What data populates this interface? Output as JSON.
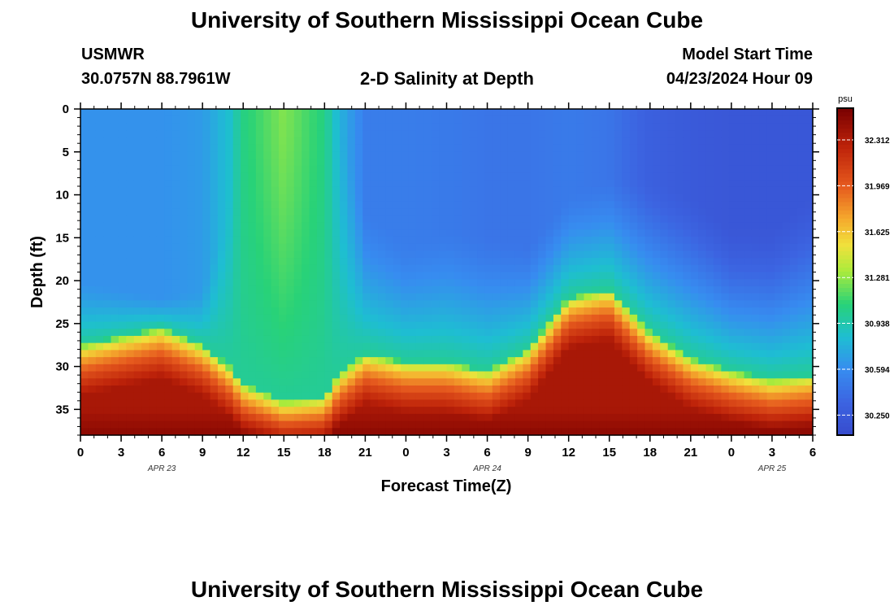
{
  "page": {
    "title_top": "University of Southern Mississippi Ocean Cube",
    "title_bottom": "University of Southern Mississippi Ocean Cube",
    "station": "USMWR",
    "coords": "30.0757N  88.7961W",
    "plot_title": "2-D Salinity at Depth",
    "model_start_label": "Model Start Time",
    "model_start_value": "04/23/2024 Hour 09"
  },
  "chart_data": {
    "type": "heatmap",
    "title": "2-D Salinity at Depth",
    "xlabel": "Forecast Time(Z)",
    "ylabel": "Depth (ft)",
    "x_ticks": [
      "0",
      "3",
      "6",
      "9",
      "12",
      "15",
      "18",
      "21",
      "0",
      "3",
      "6",
      "9",
      "12",
      "15",
      "18",
      "21",
      "0",
      "3",
      "6"
    ],
    "date_labels": [
      {
        "label": "APR 23",
        "hour_index": 6
      },
      {
        "label": "APR 24",
        "hour_index": 30
      },
      {
        "label": "APR 25",
        "hour_index": 51
      }
    ],
    "xlim": [
      0,
      54
    ],
    "y_ticks": [
      0,
      5,
      10,
      15,
      20,
      25,
      30,
      35
    ],
    "ylim": [
      0,
      38
    ],
    "colorbar": {
      "unit": "psu",
      "ticks": [
        "32.312",
        "31.969",
        "31.625",
        "31.281",
        "30.938",
        "30.594",
        "30.250"
      ],
      "tick_values": [
        32.312,
        31.969,
        31.625,
        31.281,
        30.938,
        30.594,
        30.25
      ],
      "vmin": 30.1,
      "vmax": 32.55
    },
    "hours": [
      0,
      3,
      6,
      9,
      11,
      12,
      15,
      18,
      19,
      21,
      24,
      27,
      30,
      33,
      36,
      39,
      42,
      45,
      48,
      51,
      54
    ],
    "surface_salinity": [
      30.62,
      30.62,
      30.62,
      30.66,
      30.85,
      31.05,
      31.25,
      31.05,
      30.8,
      30.5,
      30.5,
      30.48,
      30.45,
      30.45,
      30.48,
      30.45,
      30.3,
      30.25,
      30.22,
      30.22,
      30.22
    ],
    "mixed_depth_ft": [
      20,
      21,
      22,
      21,
      10,
      0,
      0,
      0,
      0,
      12,
      16,
      14,
      15,
      16,
      10,
      8,
      8,
      10,
      14,
      14,
      10
    ],
    "halocline_depth_ft": [
      27.5,
      26.5,
      25.5,
      27.5,
      30,
      32,
      34,
      33.5,
      31,
      28.5,
      29.5,
      29.5,
      30.5,
      28,
      22,
      21,
      26,
      29,
      30.5,
      31.5,
      31
    ]
  }
}
